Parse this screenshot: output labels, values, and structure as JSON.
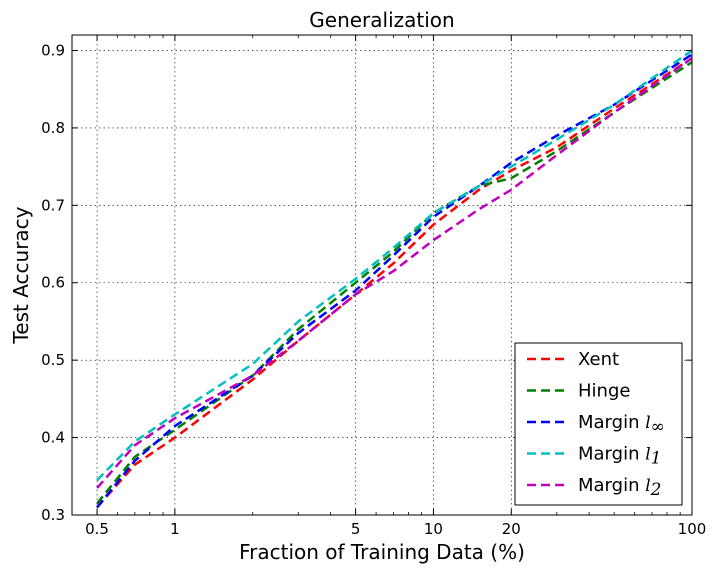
{
  "chart_data": {
    "type": "line",
    "title": "Generalization",
    "xlabel": "Fraction of Training Data (%)",
    "ylabel": "Test Accuracy",
    "xscale": "log",
    "xlim": [
      0.4,
      100
    ],
    "ylim": [
      0.3,
      0.92
    ],
    "grid": true,
    "legend_position": "bottom-right",
    "xticks": [
      0.5,
      1,
      5,
      10,
      20,
      100
    ],
    "xtick_labels": [
      "0.5",
      "1",
      "5",
      "10",
      "20",
      "100"
    ],
    "yticks": [
      0.3,
      0.4,
      0.5,
      0.6,
      0.7,
      0.8,
      0.9
    ],
    "ytick_labels": [
      "0.3",
      "0.4",
      "0.5",
      "0.6",
      "0.7",
      "0.8",
      "0.9"
    ],
    "series": [
      {
        "name": "Xent",
        "label_main": "Xent",
        "label_sub": "",
        "color": "#ff0000",
        "x": [
          0.5,
          0.7,
          1,
          2,
          3,
          5,
          7,
          10,
          15,
          20,
          30,
          50,
          100
        ],
        "y": [
          0.31,
          0.365,
          0.4,
          0.475,
          0.525,
          0.585,
          0.625,
          0.675,
          0.72,
          0.745,
          0.775,
          0.825,
          0.89
        ]
      },
      {
        "name": "Hinge",
        "label_main": "Hinge",
        "label_sub": "",
        "color": "#008000",
        "x": [
          0.5,
          0.7,
          1,
          2,
          3,
          5,
          7,
          10,
          15,
          20,
          30,
          50,
          100
        ],
        "y": [
          0.315,
          0.375,
          0.41,
          0.48,
          0.54,
          0.6,
          0.64,
          0.69,
          0.725,
          0.735,
          0.77,
          0.82,
          0.885
        ]
      },
      {
        "name": "Margin l∞",
        "label_main": "Margin ",
        "label_sub": "∞",
        "color": "#0000ff",
        "x": [
          0.5,
          0.7,
          1,
          2,
          3,
          5,
          7,
          10,
          15,
          20,
          30,
          50,
          100
        ],
        "y": [
          0.31,
          0.37,
          0.415,
          0.48,
          0.535,
          0.59,
          0.635,
          0.685,
          0.725,
          0.755,
          0.79,
          0.83,
          0.895
        ]
      },
      {
        "name": "Margin l1",
        "label_main": "Margin ",
        "label_sub": "1",
        "color": "#00bfbf",
        "x": [
          0.5,
          0.7,
          1,
          2,
          3,
          5,
          7,
          10,
          15,
          20,
          30,
          50,
          100
        ],
        "y": [
          0.345,
          0.395,
          0.43,
          0.495,
          0.55,
          0.605,
          0.645,
          0.69,
          0.725,
          0.75,
          0.785,
          0.83,
          0.9
        ]
      },
      {
        "name": "Margin l2",
        "label_main": "Margin ",
        "label_sub": "2",
        "color": "#bf00bf",
        "x": [
          0.5,
          0.7,
          1,
          2,
          3,
          5,
          7,
          10,
          15,
          20,
          30,
          50,
          100
        ],
        "y": [
          0.335,
          0.39,
          0.425,
          0.48,
          0.525,
          0.585,
          0.615,
          0.655,
          0.695,
          0.72,
          0.765,
          0.82,
          0.89
        ]
      }
    ]
  }
}
